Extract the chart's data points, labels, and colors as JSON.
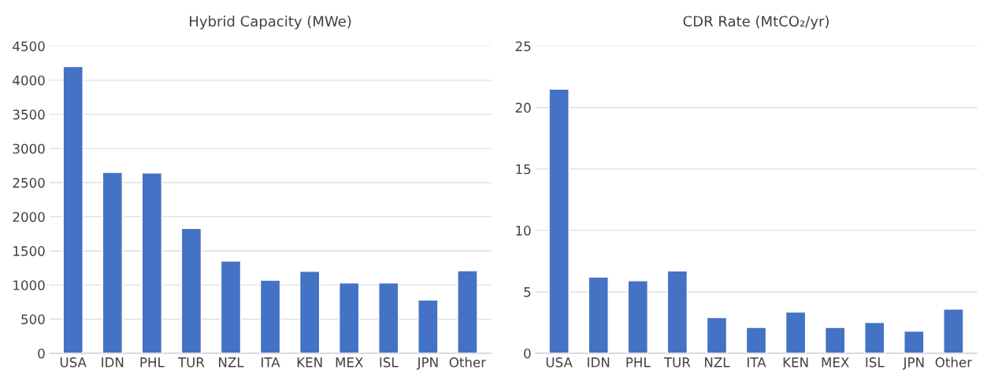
{
  "chart_data": [
    {
      "type": "bar",
      "title": "Hybrid Capacity (MWe)",
      "categories": [
        "USA",
        "IDN",
        "PHL",
        "TUR",
        "NZL",
        "ITA",
        "KEN",
        "MEX",
        "ISL",
        "JPN",
        "Other"
      ],
      "values": [
        4200,
        2650,
        2640,
        1830,
        1350,
        1070,
        1200,
        1030,
        1030,
        780,
        1210
      ],
      "color": "#4472c4",
      "ylim": [
        0,
        4500
      ],
      "yticks": [
        0,
        500,
        1000,
        1500,
        2000,
        2500,
        3000,
        3500,
        4000,
        4500
      ],
      "grid": "y"
    },
    {
      "type": "bar",
      "title": "CDR Rate (MtCO₂/yr)",
      "categories": [
        "USA",
        "IDN",
        "PHL",
        "TUR",
        "NZL",
        "ITA",
        "KEN",
        "MEX",
        "ISL",
        "JPN",
        "Other"
      ],
      "values": [
        21.5,
        6.2,
        5.9,
        6.7,
        2.9,
        2.1,
        3.35,
        2.1,
        2.5,
        1.8,
        3.6
      ],
      "color": "#4472c4",
      "ylim": [
        0,
        25
      ],
      "yticks": [
        0,
        5,
        10,
        15,
        20,
        25
      ],
      "grid": "y"
    }
  ]
}
